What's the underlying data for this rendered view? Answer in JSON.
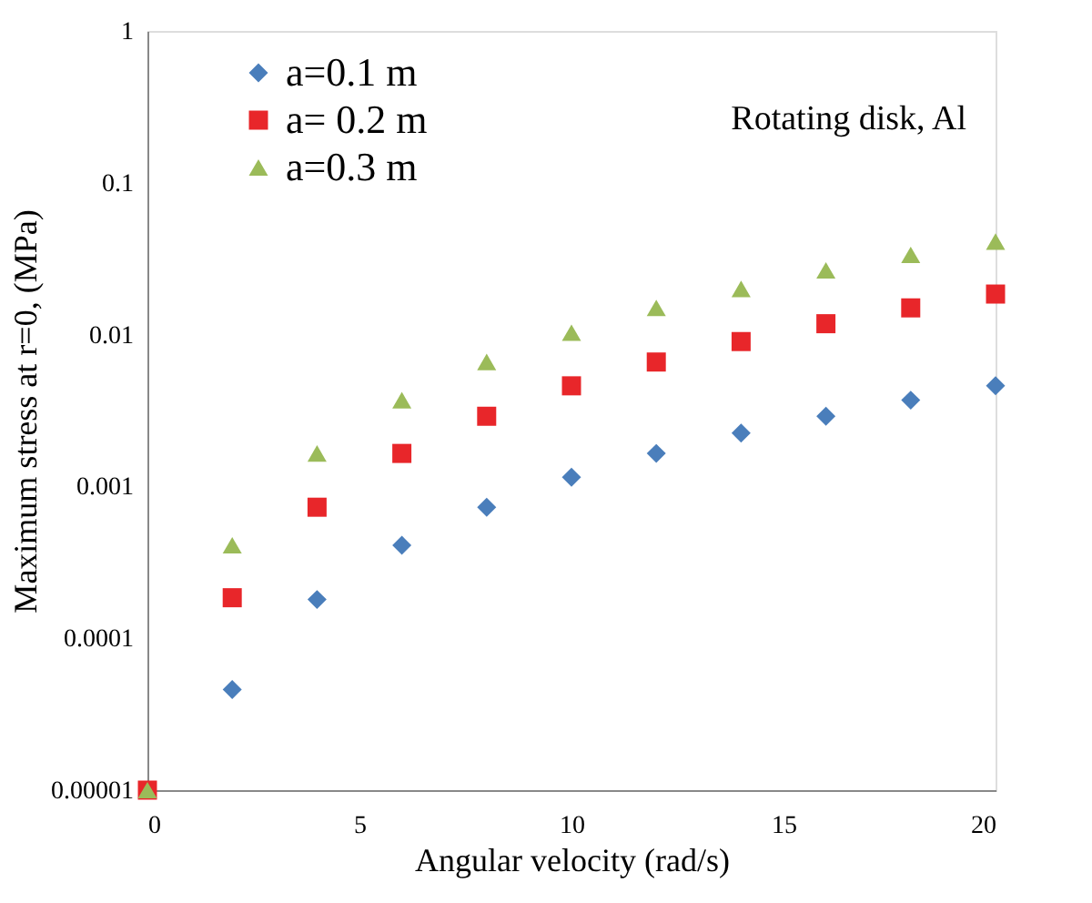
{
  "chart_data": {
    "type": "scatter",
    "xlabel": "Angular velocity (rad/s)",
    "ylabel": "Maximum stress at r=0, (MPa)",
    "annotations": [
      "Rotating disk, Al"
    ],
    "x": [
      0,
      2,
      4,
      6,
      8,
      10,
      12,
      14,
      16,
      18,
      20
    ],
    "series": [
      {
        "name": "a=0.1 m",
        "color": "#4a7ebb",
        "marker": "diamond",
        "values": [
          null,
          4.6e-05,
          0.00018,
          0.00041,
          0.00073,
          0.00115,
          0.00165,
          0.00225,
          0.0029,
          0.0037,
          0.0046
        ]
      },
      {
        "name": "a= 0.2 m",
        "color": "#e8262a",
        "marker": "square",
        "values": [
          1e-05,
          0.000185,
          0.00073,
          0.00165,
          0.0029,
          0.0046,
          0.0066,
          0.009,
          0.0118,
          0.015,
          0.0185
        ]
      },
      {
        "name": "a=0.3 m",
        "color": "#9bbb59",
        "marker": "triangle",
        "values": [
          1e-05,
          0.00041,
          0.00165,
          0.0037,
          0.0066,
          0.0103,
          0.015,
          0.02,
          0.0265,
          0.0335,
          0.041
        ]
      }
    ],
    "xlim": [
      0,
      20
    ],
    "xticks": [
      0,
      5,
      10,
      15,
      20
    ],
    "ylim": [
      1e-05,
      1
    ],
    "yticks": [
      {
        "value": 1e-05,
        "label": "0.00001"
      },
      {
        "value": 0.0001,
        "label": "0.0001"
      },
      {
        "value": 0.001,
        "label": "0.001"
      },
      {
        "value": 0.01,
        "label": "0.01"
      },
      0.1,
      1
    ],
    "log": "y",
    "grid": false,
    "legend": "top left"
  }
}
